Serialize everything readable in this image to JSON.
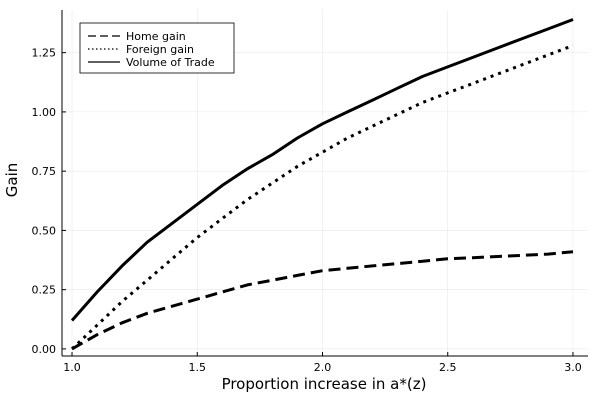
{
  "chart_data": {
    "type": "line",
    "xlabel": "Proportion increase in a*(z)",
    "ylabel": "Gain",
    "xlim": [
      0.96,
      3.06
    ],
    "ylim": [
      -0.03,
      1.43
    ],
    "x_ticks": [
      "1.0",
      "1.5",
      "2.0",
      "2.5",
      "3.0"
    ],
    "x_tick_values": [
      1.0,
      1.5,
      2.0,
      2.5,
      3.0
    ],
    "y_ticks": [
      "0.00",
      "0.25",
      "0.50",
      "0.75",
      "1.00",
      "1.25"
    ],
    "y_tick_values": [
      0.0,
      0.25,
      0.5,
      0.75,
      1.0,
      1.25
    ],
    "grid": true,
    "legend_position": "top-left",
    "x": [
      1.0,
      1.1,
      1.2,
      1.3,
      1.4,
      1.5,
      1.6,
      1.7,
      1.8,
      1.9,
      2.0,
      2.1,
      2.2,
      2.3,
      2.4,
      2.5,
      2.6,
      2.7,
      2.8,
      2.9,
      3.0
    ],
    "series": [
      {
        "name": "Home gain",
        "style": "dashed",
        "color": "#000000",
        "values": [
          0.0,
          0.06,
          0.11,
          0.15,
          0.18,
          0.21,
          0.24,
          0.27,
          0.29,
          0.31,
          0.33,
          0.34,
          0.35,
          0.36,
          0.37,
          0.38,
          0.385,
          0.39,
          0.395,
          0.4,
          0.41
        ]
      },
      {
        "name": "Foreign gain",
        "style": "dotted",
        "color": "#000000",
        "values": [
          0.0,
          0.1,
          0.2,
          0.29,
          0.38,
          0.47,
          0.55,
          0.63,
          0.7,
          0.77,
          0.83,
          0.89,
          0.94,
          0.99,
          1.04,
          1.08,
          1.12,
          1.16,
          1.2,
          1.24,
          1.28
        ]
      },
      {
        "name": "Volume of Trade",
        "style": "solid",
        "color": "#000000",
        "values": [
          0.12,
          0.24,
          0.35,
          0.45,
          0.53,
          0.61,
          0.69,
          0.76,
          0.82,
          0.89,
          0.95,
          1.0,
          1.05,
          1.1,
          1.15,
          1.19,
          1.23,
          1.27,
          1.31,
          1.35,
          1.39
        ]
      }
    ]
  }
}
